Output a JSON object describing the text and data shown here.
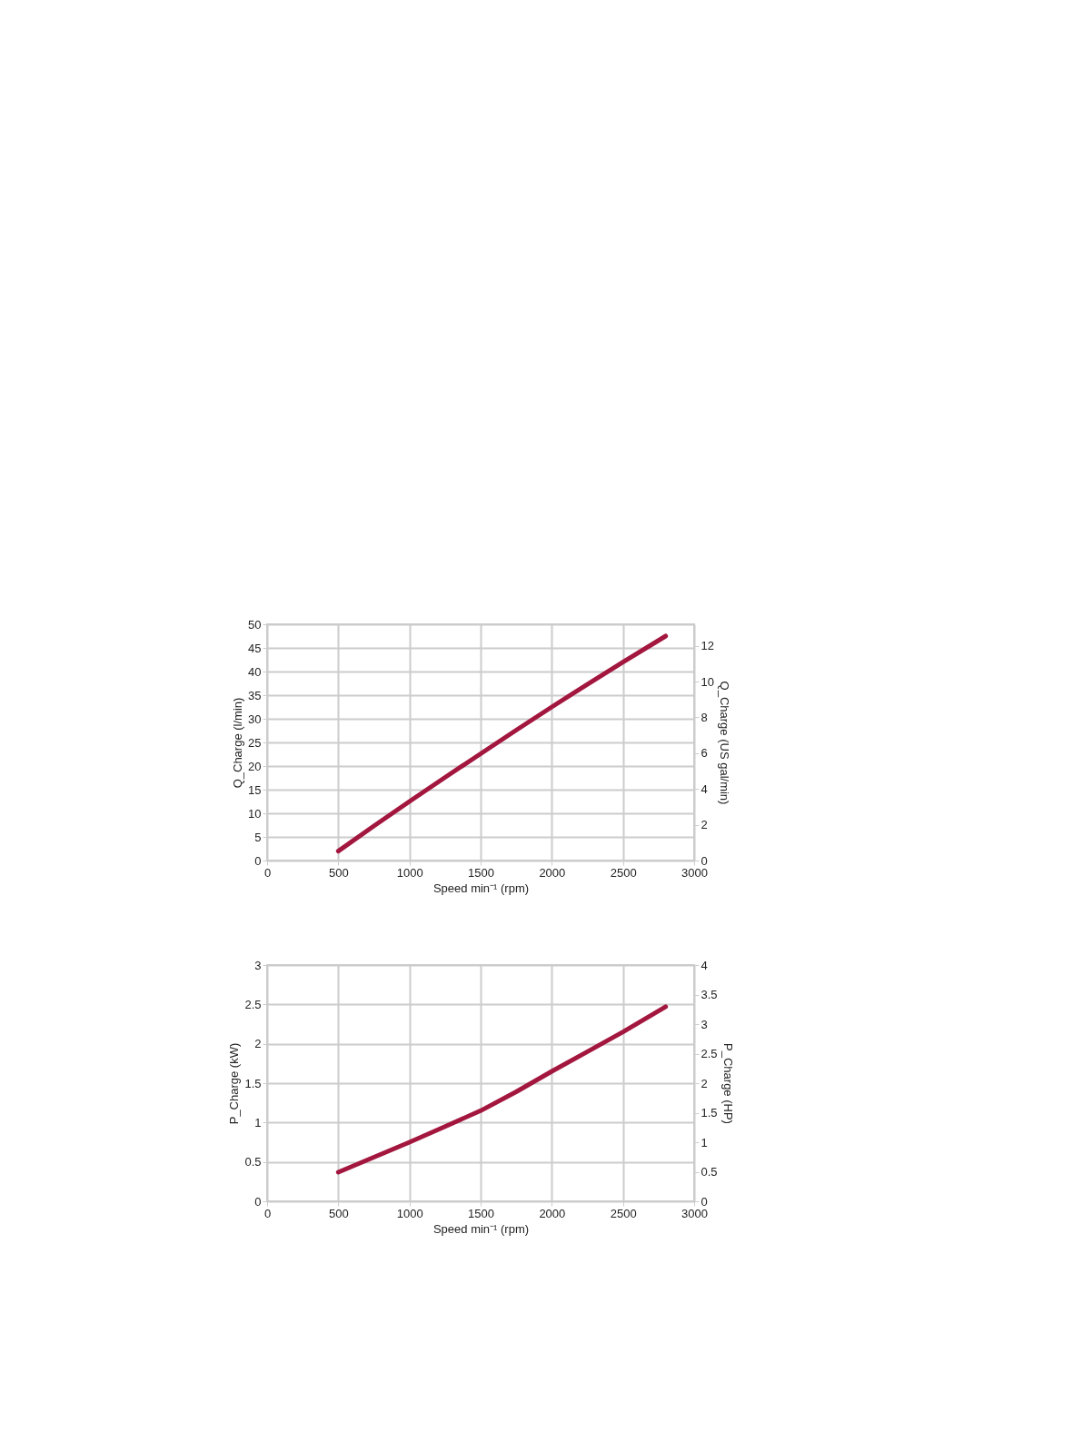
{
  "chart_data": [
    {
      "type": "line",
      "xlabel": "Speed min⁻¹ (rpm)",
      "ylabel": "Q_Charge (l/min)",
      "y2label": "Q_Charge (US gal/min)",
      "x": [
        500,
        750,
        1000,
        1250,
        1500,
        1750,
        2000,
        2250,
        2500,
        2800
      ],
      "series": [
        {
          "color": "#a3173f",
          "values": [
            2,
            7.3,
            12.5,
            17.6,
            22.6,
            27.6,
            32.5,
            37.3,
            42,
            47.5
          ]
        }
      ],
      "xlim": [
        0,
        3000
      ],
      "xticks": [
        0,
        500,
        1000,
        1500,
        2000,
        2500,
        3000
      ],
      "ylim": [
        0,
        50
      ],
      "yticks": [
        0,
        5,
        10,
        15,
        20,
        25,
        30,
        35,
        40,
        45,
        50
      ],
      "y2lim": [
        0,
        13.2
      ],
      "y2ticks": [
        0,
        2,
        4,
        6,
        8,
        10,
        12
      ],
      "grid": true,
      "line_style": "solid",
      "marker": "none"
    },
    {
      "type": "line",
      "xlabel": "Speed min⁻¹ (rpm)",
      "ylabel": "P_Charge (kW)",
      "y2label": "P_Charge (HP)",
      "x": [
        500,
        750,
        1000,
        1250,
        1500,
        1750,
        2000,
        2250,
        2500,
        2800
      ],
      "series": [
        {
          "color": "#a3173f",
          "values": [
            0.37,
            0.56,
            0.75,
            0.95,
            1.15,
            1.39,
            1.65,
            1.9,
            2.15,
            2.47
          ]
        }
      ],
      "xlim": [
        0,
        3000
      ],
      "xticks": [
        0,
        500,
        1000,
        1500,
        2000,
        2500,
        3000
      ],
      "ylim": [
        0,
        3
      ],
      "yticks": [
        0,
        0.5,
        1,
        1.5,
        2,
        2.5,
        3
      ],
      "y2lim": [
        0,
        4
      ],
      "y2ticks": [
        0,
        0.5,
        1,
        1.5,
        2,
        2.5,
        3,
        3.5,
        4
      ],
      "grid": true,
      "line_style": "solid",
      "marker": "none"
    }
  ]
}
